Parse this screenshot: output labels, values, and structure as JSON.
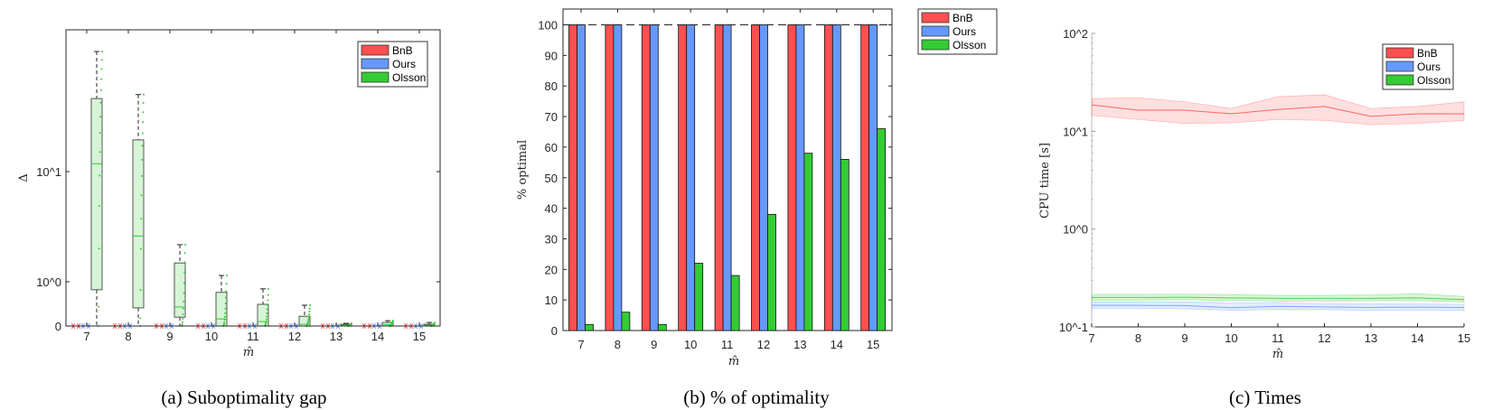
{
  "colors": {
    "BnB": "#ff5050",
    "Ours": "#6699ff",
    "Olsson": "#33cc33"
  },
  "chart_data": [
    {
      "type": "box",
      "caption": "(a) Suboptimality gap",
      "xlabel": "m̂",
      "ylabel": "Δ",
      "yscale": "symlog",
      "ytick_labels": [
        "0",
        "10^0",
        "10^1"
      ],
      "categories": [
        "7",
        "8",
        "9",
        "10",
        "11",
        "12",
        "13",
        "14",
        "15"
      ],
      "legend": [
        "BnB",
        "Ours",
        "Olsson"
      ],
      "legend_position": "top-right",
      "series": [
        {
          "name": "BnB",
          "all_zero": true
        },
        {
          "name": "Ours",
          "all_zero": true
        },
        {
          "name": "Olsson",
          "q1": [
            0.82,
            0.41,
            0.2,
            0,
            0,
            0,
            0,
            0,
            0
          ],
          "median": [
            11.8,
            2.6,
            0.43,
            0.16,
            0.1,
            0.04,
            0.02,
            0.03,
            0.02
          ],
          "q3": [
            46,
            19.4,
            1.48,
            0.76,
            0.49,
            0.22,
            0.04,
            0.08,
            0.04
          ],
          "whisker_high": [
            123,
            50,
            2.17,
            1.14,
            0.84,
            0.47,
            0.06,
            0.12,
            0.08
          ]
        }
      ]
    },
    {
      "type": "bar",
      "caption": "(b) % of optimality",
      "xlabel": "m̂",
      "ylabel": "% optimal",
      "ylim": [
        0,
        105
      ],
      "yticks": [
        0,
        10,
        20,
        30,
        40,
        50,
        60,
        70,
        80,
        90,
        100
      ],
      "reference_line": 100,
      "categories": [
        "7",
        "8",
        "9",
        "10",
        "11",
        "12",
        "13",
        "14",
        "15"
      ],
      "legend": [
        "BnB",
        "Ours",
        "Olsson"
      ],
      "legend_position": "outside-top-right",
      "series": [
        {
          "name": "BnB",
          "values": [
            100,
            100,
            100,
            100,
            100,
            100,
            100,
            100,
            100
          ]
        },
        {
          "name": "Ours",
          "values": [
            100,
            100,
            100,
            100,
            100,
            100,
            100,
            100,
            100
          ]
        },
        {
          "name": "Olsson",
          "values": [
            2,
            6,
            2,
            22,
            18,
            38,
            58,
            56,
            66
          ]
        }
      ]
    },
    {
      "type": "line",
      "caption": "(c) Times",
      "xlabel": "m̂",
      "ylabel": "CPU time [s]",
      "yscale": "log",
      "ylim": [
        0.1,
        100
      ],
      "ytick_labels": [
        "10^-1",
        "10^0",
        "10^1",
        "10^2"
      ],
      "x": [
        7,
        8,
        9,
        10,
        11,
        12,
        13,
        14,
        15
      ],
      "legend": [
        "BnB",
        "Ours",
        "Olsson"
      ],
      "legend_position": "top-right",
      "series": [
        {
          "name": "BnB",
          "mean": [
            18.6,
            16.4,
            16.4,
            15.1,
            16.7,
            17.9,
            14.2,
            15.1,
            15.1
          ],
          "upper": [
            21.6,
            22,
            20,
            17.1,
            22.6,
            23.6,
            17.1,
            17.9,
            20
          ],
          "lower": [
            14.5,
            13.2,
            12.0,
            12.2,
            13.2,
            12.9,
            11.7,
            12.0,
            12.9
          ]
        },
        {
          "name": "Ours",
          "mean": [
            0.166,
            0.166,
            0.165,
            0.157,
            0.162,
            0.16,
            0.158,
            0.159,
            0.158
          ],
          "upper": [
            0.18,
            0.18,
            0.18,
            0.175,
            0.178,
            0.172,
            0.172,
            0.172,
            0.17
          ],
          "lower": [
            0.155,
            0.155,
            0.153,
            0.148,
            0.15,
            0.15,
            0.148,
            0.149,
            0.148
          ]
        },
        {
          "name": "Olsson",
          "mean": [
            0.2,
            0.2,
            0.201,
            0.198,
            0.196,
            0.196,
            0.196,
            0.198,
            0.19
          ],
          "upper": [
            0.215,
            0.215,
            0.216,
            0.214,
            0.21,
            0.21,
            0.212,
            0.218,
            0.205
          ],
          "lower": [
            0.188,
            0.188,
            0.19,
            0.186,
            0.184,
            0.184,
            0.185,
            0.186,
            0.18
          ]
        }
      ]
    }
  ]
}
